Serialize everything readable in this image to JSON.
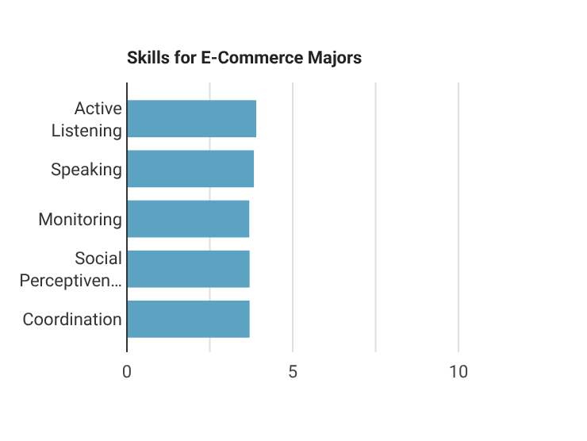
{
  "chart_data": {
    "type": "bar",
    "orientation": "horizontal",
    "title": "Skills for E-Commerce Majors",
    "categories": [
      "Active Listening",
      "Speaking",
      "Monitoring",
      "Social Perceptiven…",
      "Coordination"
    ],
    "values": [
      3.9,
      3.83,
      3.69,
      3.7,
      3.7
    ],
    "color": "#5ba3c0",
    "xlim": [
      0,
      10
    ],
    "xticks": [
      0,
      {
        "value": 2.5,
        "label": null
      },
      5,
      {
        "value": 7.5,
        "label": null
      },
      10
    ],
    "grid": "x"
  }
}
